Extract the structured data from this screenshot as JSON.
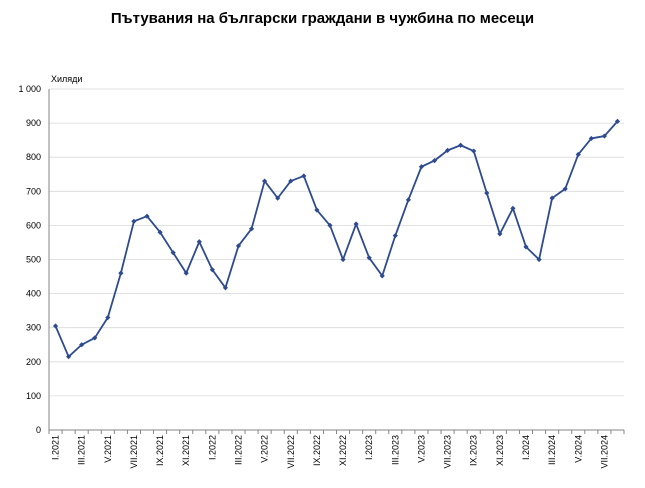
{
  "chart_data": {
    "type": "line",
    "title": "Пътувания на български граждани в чужбина по месеци",
    "ylabel": "Хиляди",
    "xlabel": "",
    "ylim": [
      0,
      1000
    ],
    "yticks": [
      0,
      100,
      200,
      300,
      400,
      500,
      600,
      700,
      800,
      900,
      1000
    ],
    "ytick_labels": [
      "0",
      "100",
      "200",
      "300",
      "400",
      "500",
      "600",
      "700",
      "800",
      "900",
      "1 000"
    ],
    "grid": true,
    "legend": "none",
    "color": "#2E4B8F",
    "categories": [
      "I.2021",
      "II.2021",
      "III.2021",
      "IV.2021",
      "V.2021",
      "VI.2021",
      "VII.2021",
      "VIII.2021",
      "IX.2021",
      "X.2021",
      "XI.2021",
      "XII.2021",
      "I.2022",
      "II.2022",
      "III.2022",
      "IV.2022",
      "V.2022",
      "VI.2022",
      "VII.2022",
      "VIII.2022",
      "IX.2022",
      "X.2022",
      "XI.2022",
      "XII.2022",
      "I.2023",
      "II.2023",
      "III.2023",
      "IV.2023",
      "V.2023",
      "VI.2023",
      "VII.2023",
      "VIII.2023",
      "IX.2023",
      "X.2023",
      "XI.2023",
      "XII.2023",
      "I.2024",
      "II.2024",
      "III.2024",
      "IV.2024",
      "V.2024",
      "VI.2024",
      "VII.2024",
      "VIII.2024"
    ],
    "xtick_labels": [
      "I.2021",
      "III.2021",
      "V.2021",
      "VII.2021",
      "IX.2021",
      "XI.2021",
      "I.2022",
      "III.2022",
      "V.2022",
      "VII.2022",
      "IX.2022",
      "XI.2022",
      "I.2023",
      "III.2023",
      "V.2023",
      "VII.2023",
      "IX.2023",
      "XI.2023",
      "I.2024",
      "III.2024",
      "V.2024",
      "VII.2024"
    ],
    "values": [
      305,
      215,
      250,
      270,
      330,
      460,
      612,
      627,
      580,
      520,
      460,
      552,
      470,
      417,
      540,
      590,
      730,
      680,
      730,
      745,
      645,
      600,
      500,
      604,
      505,
      452,
      570,
      675,
      772,
      790,
      820,
      835,
      818,
      695,
      575,
      650,
      537,
      500,
      680,
      707,
      808,
      855,
      862,
      905
    ]
  }
}
